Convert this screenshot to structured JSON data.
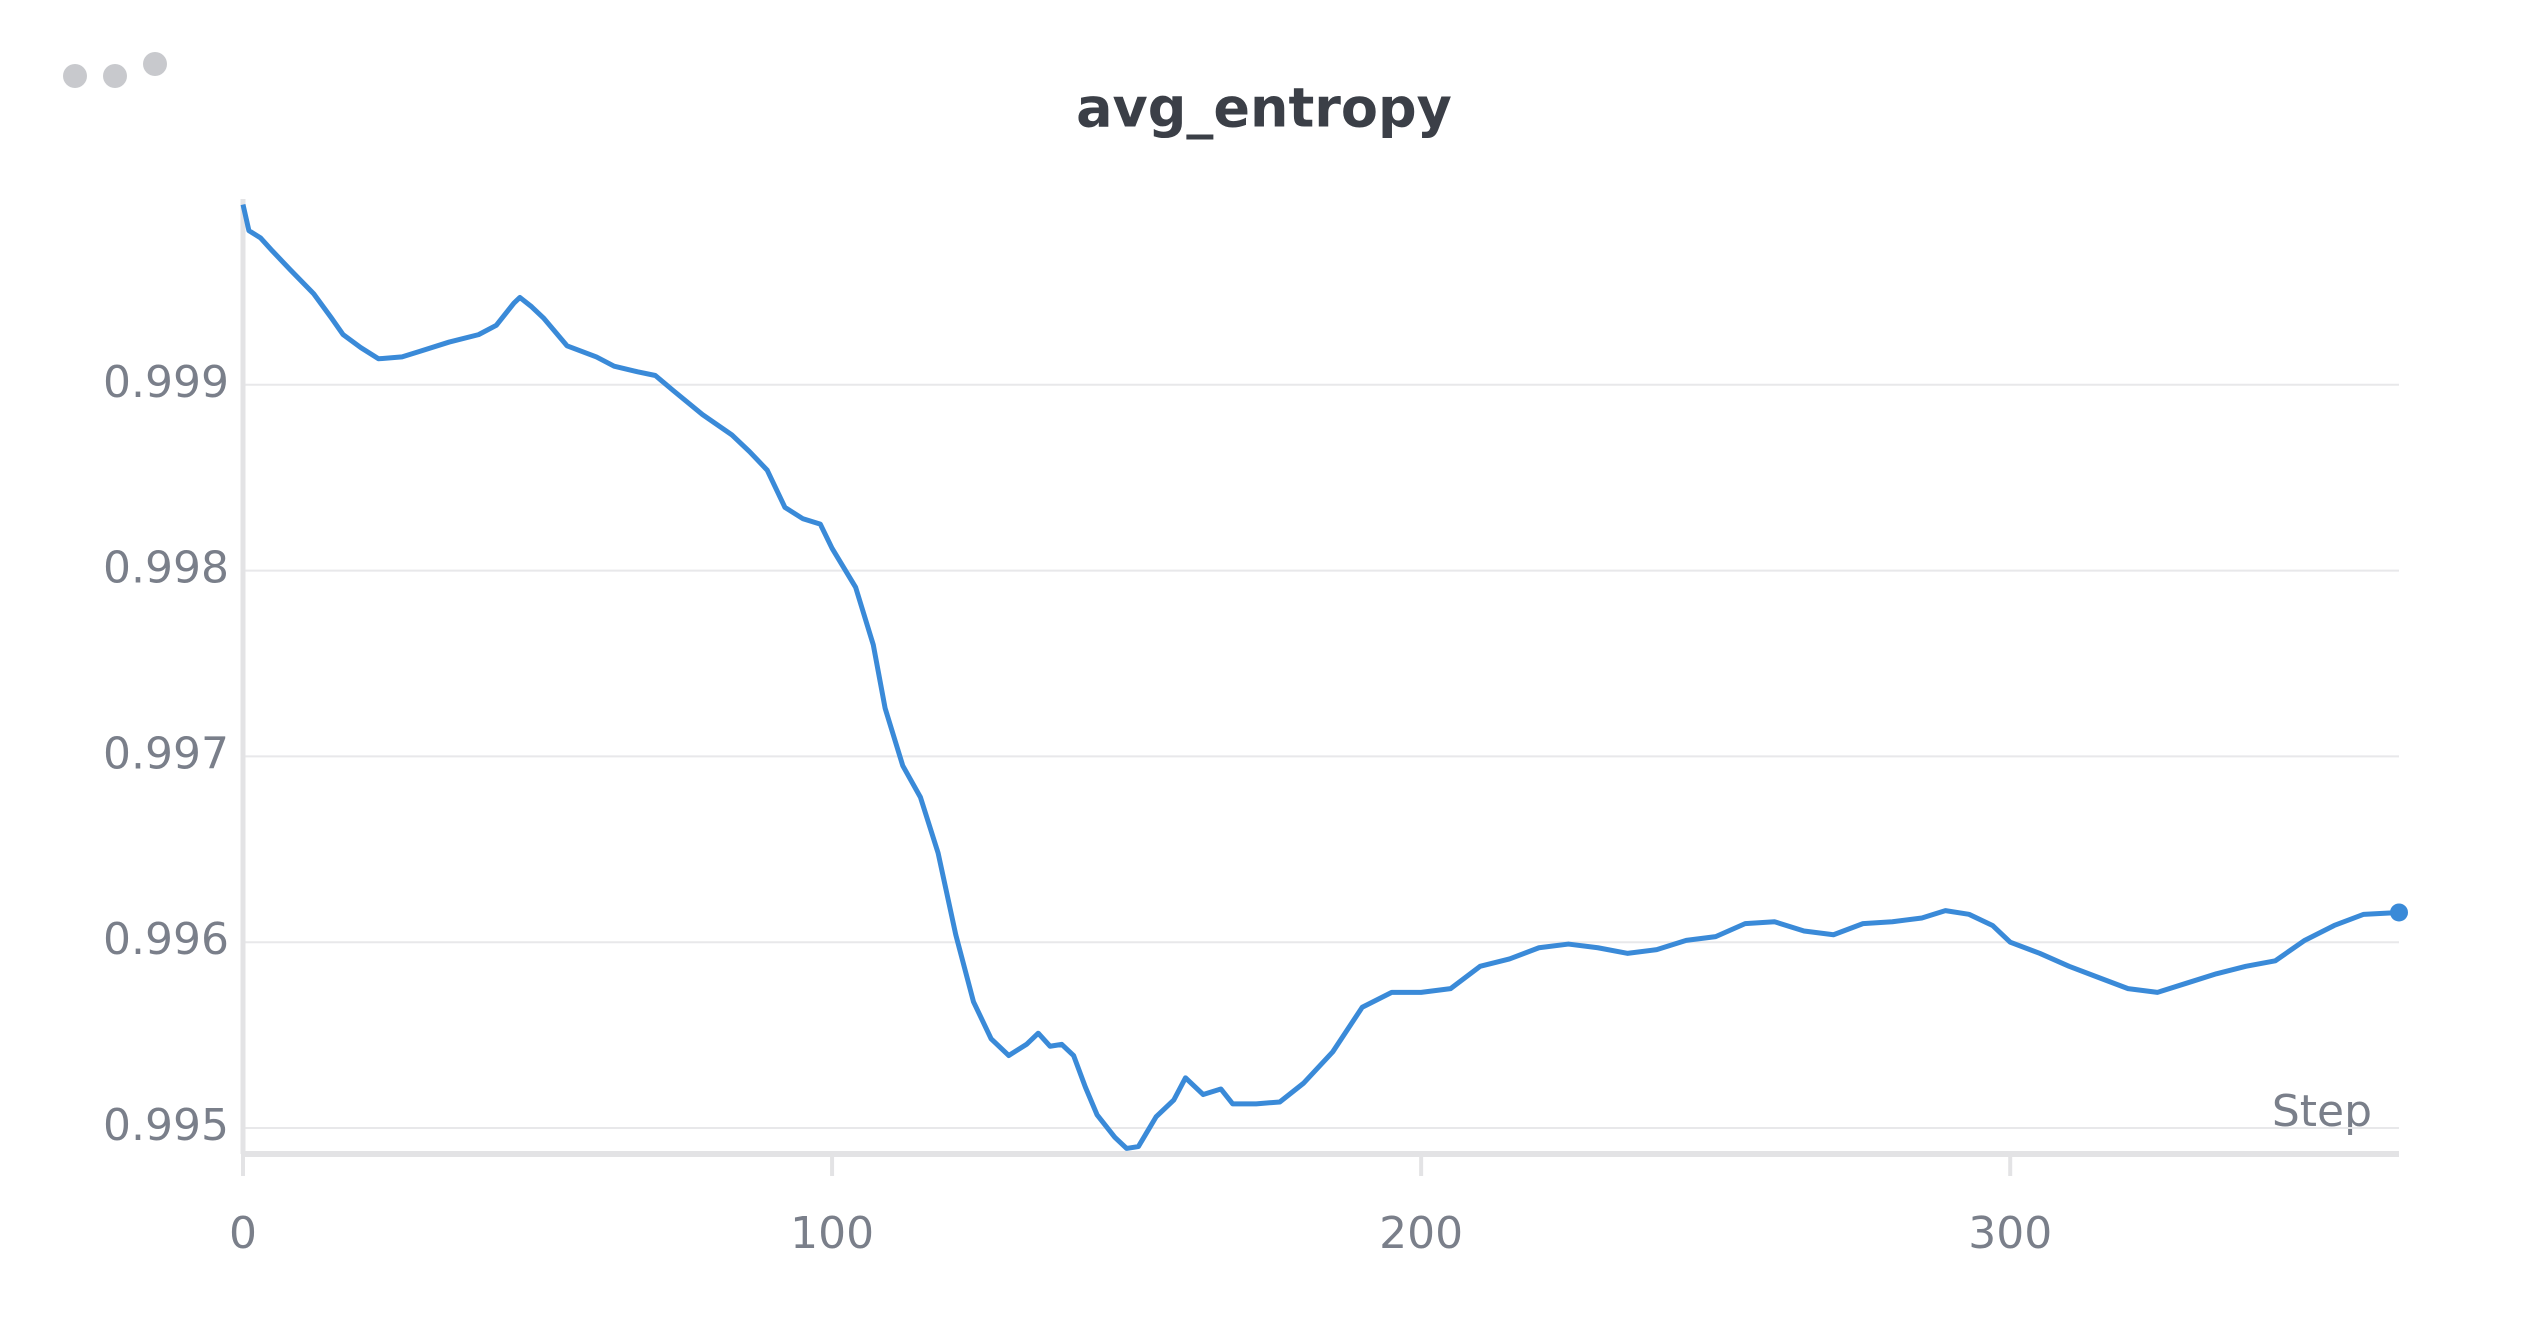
{
  "chart_data": {
    "type": "line",
    "title": "avg_entropy",
    "x_label": "Step",
    "x": [
      0,
      1,
      3,
      5,
      8,
      12,
      15,
      17,
      20,
      23,
      27,
      30,
      35,
      40,
      43,
      46,
      47,
      49,
      51,
      55,
      60,
      63,
      67,
      70,
      73,
      78,
      83,
      86,
      89,
      92,
      95,
      98,
      100,
      104,
      107,
      109,
      112,
      115,
      118,
      121,
      124,
      127,
      130,
      133,
      135,
      137,
      139,
      141,
      143,
      145,
      148,
      150,
      152,
      155,
      158,
      160,
      163,
      166,
      168,
      172,
      176,
      180,
      185,
      190,
      195,
      200,
      205,
      210,
      215,
      220,
      225,
      230,
      235,
      240,
      245,
      250,
      255,
      260,
      265,
      270,
      275,
      280,
      285,
      289,
      293,
      297,
      300,
      305,
      310,
      315,
      320,
      325,
      330,
      335,
      340,
      345,
      350,
      355,
      360,
      366
    ],
    "series": [
      {
        "name": "avg_entropy",
        "color": "#3a8ad8",
        "values": [
          0.99997,
          0.99983,
          0.99979,
          0.99972,
          0.99962,
          0.99949,
          0.99936,
          0.99927,
          0.9992,
          0.99914,
          0.99915,
          0.99918,
          0.99923,
          0.99927,
          0.99932,
          0.99944,
          0.99947,
          0.99942,
          0.99936,
          0.99921,
          0.99915,
          0.9991,
          0.99907,
          0.99905,
          0.99897,
          0.99884,
          0.99873,
          0.99864,
          0.99854,
          0.99834,
          0.99828,
          0.99825,
          0.99812,
          0.99791,
          0.9976,
          0.99726,
          0.99695,
          0.99678,
          0.99648,
          0.99604,
          0.99568,
          0.99548,
          0.99539,
          0.99545,
          0.99551,
          0.99544,
          0.99545,
          0.99539,
          0.99522,
          0.99507,
          0.99495,
          0.99489,
          0.9949,
          0.99506,
          0.99515,
          0.99527,
          0.99518,
          0.99521,
          0.99513,
          0.99513,
          0.99514,
          0.99524,
          0.99541,
          0.99565,
          0.99573,
          0.99573,
          0.99575,
          0.99587,
          0.99591,
          0.99597,
          0.99599,
          0.99597,
          0.99594,
          0.99596,
          0.99601,
          0.99603,
          0.9961,
          0.99611,
          0.99606,
          0.99604,
          0.9961,
          0.99611,
          0.99613,
          0.99617,
          0.99615,
          0.99609,
          0.996,
          0.99594,
          0.99587,
          0.99581,
          0.99575,
          0.99573,
          0.99578,
          0.99583,
          0.99587,
          0.9959,
          0.99601,
          0.99609,
          0.99615,
          0.99616
        ]
      }
    ],
    "xlim": [
      0,
      366
    ],
    "xticks": [
      0,
      100,
      200,
      300
    ],
    "ylim": [
      0.99486,
      1.0
    ],
    "yticks": [
      0.995,
      0.996,
      0.997,
      0.998,
      0.999
    ],
    "grid": true
  }
}
